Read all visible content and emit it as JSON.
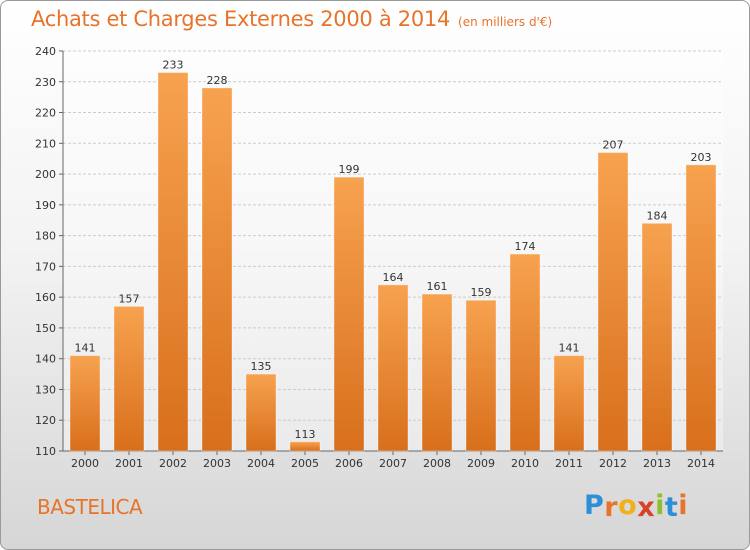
{
  "header": {
    "title": "Achats et Charges Externes 2000 à 2014",
    "unit": "(en milliers d'€)"
  },
  "footer": {
    "commune": "BASTELICA",
    "logo_letters": [
      "P",
      "r",
      "o",
      "x",
      "i",
      "t",
      "i"
    ],
    "logo_colors": [
      "#2f8fd6",
      "#e8732a",
      "#f2b019",
      "#d9422a",
      "#8fbf2a",
      "#2f8fd6",
      "#e8732a"
    ]
  },
  "colors": {
    "bar_light": "#f7a24f",
    "bar_dark": "#d86f1c",
    "accent": "#e8732a",
    "grid": "#cccccc"
  },
  "chart_data": {
    "type": "bar",
    "categories": [
      "2000",
      "2001",
      "2002",
      "2003",
      "2004",
      "2005",
      "2006",
      "2007",
      "2008",
      "2009",
      "2010",
      "2011",
      "2012",
      "2013",
      "2014"
    ],
    "values": [
      141,
      157,
      233,
      228,
      135,
      113,
      199,
      164,
      161,
      159,
      174,
      141,
      207,
      184,
      203
    ],
    "title": "Achats et Charges Externes 2000 à 2014",
    "ylim": [
      110,
      240
    ],
    "yticks": [
      110,
      120,
      130,
      140,
      150,
      160,
      170,
      180,
      190,
      200,
      210,
      220,
      230,
      240
    ],
    "grid": true,
    "data_labels": true
  }
}
